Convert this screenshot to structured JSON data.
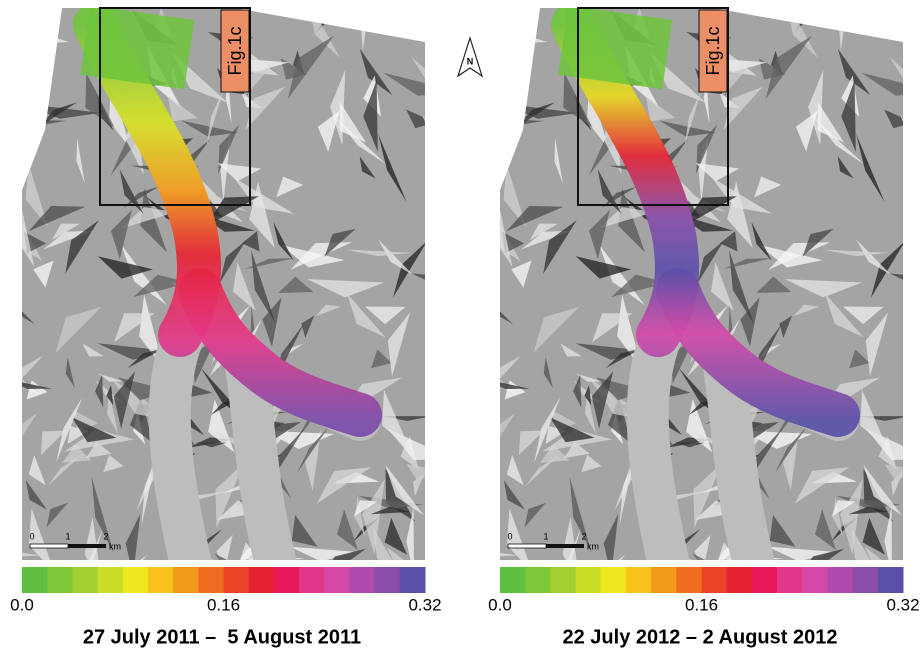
{
  "north_label": "N",
  "colorbar_colors": [
    "#5fbf3f",
    "#7ec83a",
    "#a3d030",
    "#c8dc28",
    "#f0e81e",
    "#f7c21a",
    "#f39a1b",
    "#ef6d21",
    "#ea4328",
    "#e52232",
    "#e5195a",
    "#e3388a",
    "#d449a8",
    "#ae4bad",
    "#8a4ca9",
    "#5a50a8"
  ],
  "panels": [
    {
      "inset_label": "Fig.1c",
      "scale_bar": {
        "labels": [
          "0",
          "1",
          "2"
        ],
        "unit": "km"
      },
      "colorbar_labels": [
        "0.0",
        "0.16",
        "0.32"
      ],
      "caption": "27 July 2011 –  5 August 2011"
    },
    {
      "inset_label": "Fig.1c",
      "scale_bar": {
        "labels": [
          "0",
          "1",
          "2"
        ],
        "unit": "km"
      },
      "colorbar_labels": [
        "0.0",
        "0.16",
        "0.32"
      ],
      "caption": "22 July 2012 – 2 August 2012"
    }
  ]
}
